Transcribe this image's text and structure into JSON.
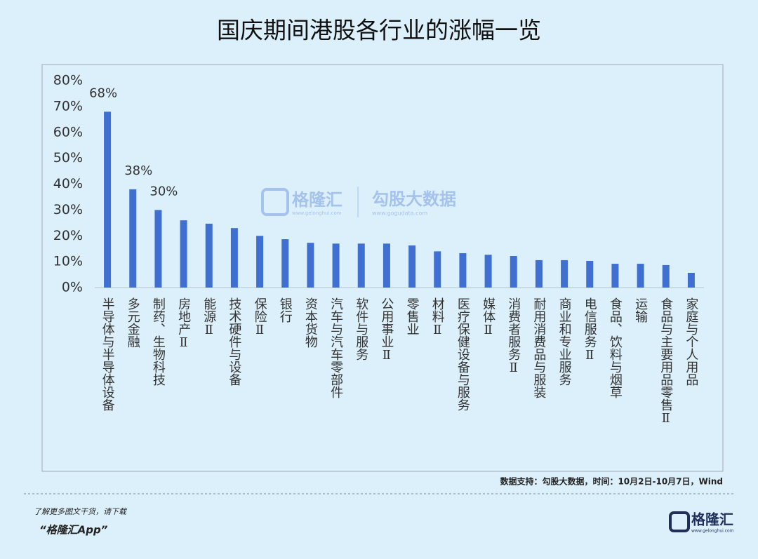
{
  "chart_data": {
    "type": "bar",
    "title": "国庆期间港股各行业的涨幅一览",
    "categories": [
      "半导体与半导体设备",
      "多元金融",
      "制药、生物科技",
      "房地产Ⅱ",
      "能源Ⅱ",
      "技术硬件与设备",
      "保险Ⅱ",
      "银行",
      "资本货物",
      "汽车与汽车零部件",
      "软件与服务",
      "公用事业Ⅱ",
      "零售业",
      "材料Ⅱ",
      "医疗保健设备与服务",
      "媒体Ⅱ",
      "消费者服务Ⅱ",
      "耐用消费品与服装",
      "商业和专业服务",
      "电信服务Ⅱ",
      "食品、饮料与烟草",
      "运输",
      "食品与主要用品零售Ⅱ",
      "家庭与个人用品"
    ],
    "values": [
      68,
      38,
      30,
      26,
      24.7,
      23,
      20,
      18.7,
      17.3,
      17,
      17,
      17,
      16.3,
      14,
      13.3,
      12.7,
      12.2,
      10.6,
      10.6,
      10.3,
      9.2,
      9.2,
      8.7,
      5.7
    ],
    "value_labels": [
      "68%",
      "38%",
      "30%",
      null,
      null,
      null,
      null,
      null,
      null,
      null,
      null,
      null,
      null,
      null,
      null,
      null,
      null,
      null,
      null,
      null,
      null,
      null,
      null,
      null
    ],
    "color": "#3f6fd0",
    "ylim": [
      0,
      80
    ],
    "yticks": [
      {
        "value": 0,
        "label": "0%"
      },
      {
        "value": 10,
        "label": "10%"
      },
      {
        "value": 20,
        "label": "20%"
      },
      {
        "value": 30,
        "label": "30%"
      },
      {
        "value": 40,
        "label": "40%"
      },
      {
        "value": 50,
        "label": "50%"
      },
      {
        "value": 60,
        "label": "60%"
      },
      {
        "value": 70,
        "label": "70%"
      },
      {
        "value": 80,
        "label": "80%"
      }
    ],
    "grid": false,
    "source": "数据支持：勾股大数据，时间：10月2日-10月7日，Wind"
  },
  "watermark": {
    "brand": "格隆汇",
    "brand_url": "www.gelonghui.com",
    "partner": "勾股大数据",
    "partner_url": "www.gogudata.com"
  },
  "footer": {
    "line1": "了解更多图文干货，请下载",
    "line2": "“格隆汇App”",
    "logo": "格隆汇",
    "logo_url": "www.gelonghui.com"
  }
}
